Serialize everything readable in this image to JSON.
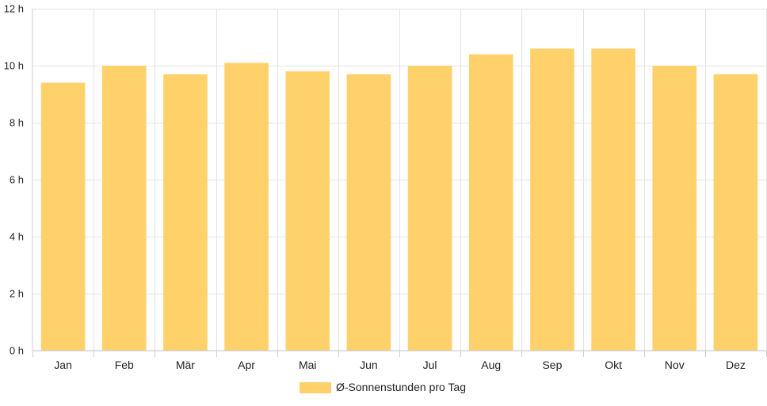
{
  "chart_data": {
    "type": "bar",
    "categories": [
      "Jan",
      "Feb",
      "Mär",
      "Apr",
      "Mai",
      "Jun",
      "Jul",
      "Aug",
      "Sep",
      "Okt",
      "Nov",
      "Dez"
    ],
    "series": [
      {
        "name": "Ø-Sonnenstunden pro Tag",
        "values": [
          9.4,
          10.0,
          9.7,
          10.1,
          9.8,
          9.7,
          10.0,
          10.4,
          10.6,
          10.6,
          10.0,
          9.7
        ],
        "color": "#fed16b"
      }
    ],
    "title": "",
    "xlabel": "",
    "ylabel": "",
    "ylim": [
      0,
      12
    ],
    "yticks": [
      {
        "value": 0,
        "label": "0 h"
      },
      {
        "value": 2,
        "label": "2 h"
      },
      {
        "value": 4,
        "label": "4 h"
      },
      {
        "value": 6,
        "label": "6 h"
      },
      {
        "value": 8,
        "label": "8 h"
      },
      {
        "value": 10,
        "label": "10 h"
      },
      {
        "value": 12,
        "label": "12 h"
      }
    ],
    "grid": true,
    "legend": {
      "position": "bottom",
      "label": "Ø-Sonnenstunden pro Tag"
    }
  }
}
